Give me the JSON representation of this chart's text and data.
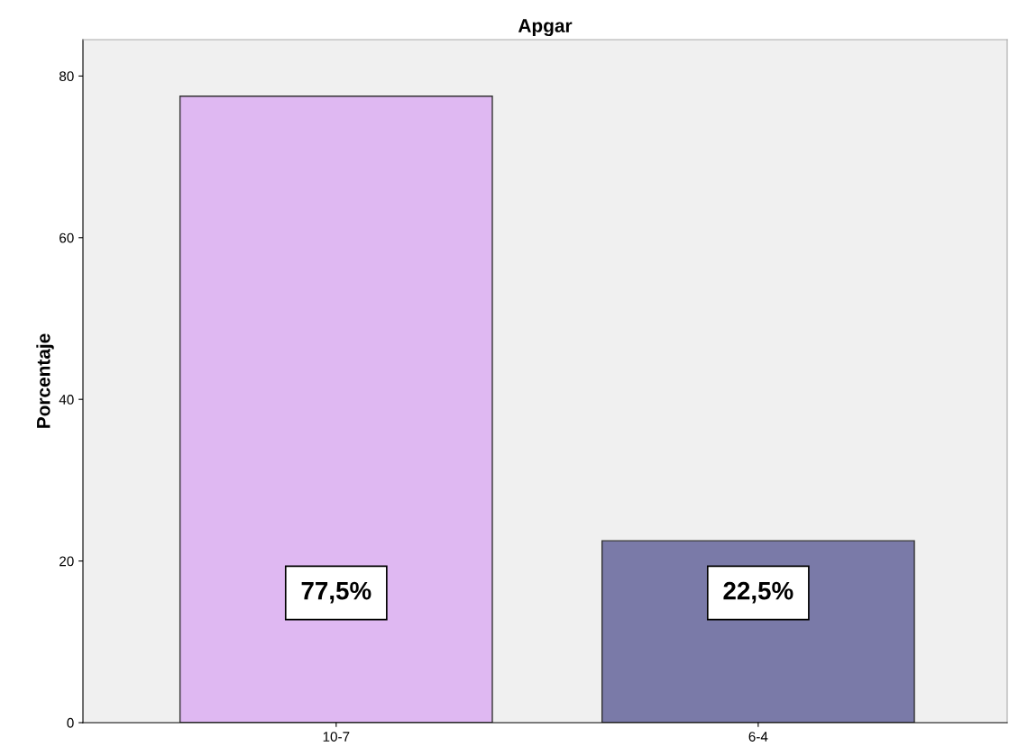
{
  "chart_data": {
    "type": "bar",
    "title": "Apgar",
    "ylabel": "Porcentaje",
    "categories": [
      "10-7",
      "6-4"
    ],
    "values": [
      77.5,
      22.5
    ],
    "colors": [
      "#dfb8f2",
      "#7a7aa8"
    ],
    "value_labels": [
      "77,5%",
      "22,5%"
    ],
    "ylim": [
      0,
      84.5
    ],
    "yticks": [
      0,
      20,
      40,
      60,
      80
    ],
    "grid": false
  }
}
